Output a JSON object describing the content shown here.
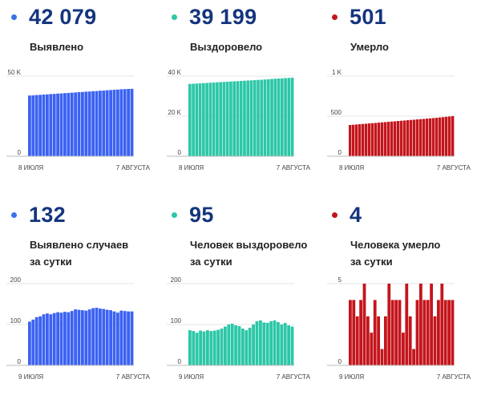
{
  "cards": [
    {
      "value": "42 079",
      "label_lines": [
        "Выявлено"
      ],
      "color": "#3b62f2",
      "dot_color": "#3b71e8",
      "chart_data": {
        "type": "bar",
        "y_ticks": [
          "50 K",
          "0"
        ],
        "ylim": [
          0,
          50000
        ],
        "x_tick_labels": [
          "8 ИЮЛЯ",
          "7 АВГУСТА"
        ],
        "values": [
          37900,
          38000,
          38200,
          38300,
          38500,
          38600,
          38800,
          38900,
          39100,
          39200,
          39400,
          39500,
          39700,
          39800,
          40000,
          40100,
          40300,
          40400,
          40600,
          40700,
          40900,
          41000,
          41200,
          41300,
          41500,
          41600,
          41800,
          41900,
          42000,
          42079
        ]
      }
    },
    {
      "value": "39 199",
      "label_lines": [
        "Выздоровело"
      ],
      "color": "#2cc7a7",
      "dot_color": "#2cc7a7",
      "chart_data": {
        "type": "bar",
        "y_ticks": [
          "40 K",
          "20 K",
          "0"
        ],
        "ylim": [
          0,
          40000
        ],
        "x_tick_labels": [
          "8 ИЮЛЯ",
          "7 АВГУСТА"
        ],
        "values": [
          36100,
          36200,
          36300,
          36400,
          36500,
          36600,
          36700,
          36800,
          36900,
          37000,
          37100,
          37200,
          37300,
          37400,
          37500,
          37600,
          37700,
          37800,
          37900,
          38000,
          38100,
          38200,
          38300,
          38400,
          38600,
          38700,
          38800,
          38900,
          39000,
          39100,
          39199
        ]
      }
    },
    {
      "value": "501",
      "label_lines": [
        "Умерло"
      ],
      "color": "#c4151c",
      "dot_color": "#c4151c",
      "chart_data": {
        "type": "bar",
        "y_ticks": [
          "1 K",
          "500",
          "0"
        ],
        "ylim": [
          0,
          1000
        ],
        "x_tick_labels": [
          "8 ИЮЛЯ",
          "7 АВГУСТА"
        ],
        "values": [
          390,
          393,
          396,
          400,
          403,
          406,
          410,
          413,
          416,
          420,
          423,
          426,
          430,
          433,
          436,
          440,
          443,
          446,
          450,
          453,
          456,
          460,
          463,
          466,
          470,
          473,
          476,
          480,
          484,
          488,
          492,
          496,
          501
        ]
      }
    },
    {
      "value": "132",
      "label_lines": [
        "Выявлено случаев",
        "за сутки"
      ],
      "color": "#3b62f2",
      "dot_color": "#3b71e8",
      "chart_data": {
        "type": "bar",
        "y_ticks": [
          "200",
          "100",
          "0"
        ],
        "ylim": [
          0,
          200
        ],
        "x_tick_labels": [
          "9 ИЮЛЯ",
          "7 АВГУСТА"
        ],
        "values": [
          107,
          112,
          118,
          120,
          125,
          127,
          125,
          128,
          130,
          129,
          131,
          130,
          133,
          137,
          136,
          135,
          134,
          137,
          140,
          141,
          139,
          138,
          136,
          135,
          132,
          129,
          134,
          133,
          132,
          132
        ]
      }
    },
    {
      "value": "95",
      "label_lines": [
        "Человек выздоровело",
        "за сутки"
      ],
      "color": "#2cc7a7",
      "dot_color": "#2cc7a7",
      "chart_data": {
        "type": "bar",
        "y_ticks": [
          "200",
          "100",
          "0"
        ],
        "ylim": [
          0,
          200
        ],
        "x_tick_labels": [
          "9 ИЮЛЯ",
          "7 АВГУСТА"
        ],
        "values": [
          86,
          84,
          80,
          85,
          83,
          86,
          84,
          85,
          87,
          90,
          95,
          100,
          102,
          98,
          96,
          90,
          86,
          92,
          100,
          108,
          110,
          105,
          104,
          108,
          110,
          106,
          100,
          104,
          98,
          95
        ]
      }
    },
    {
      "value": "4",
      "label_lines": [
        "Человека умерло",
        "за сутки"
      ],
      "color": "#c4151c",
      "dot_color": "#c4151c",
      "chart_data": {
        "type": "bar",
        "y_ticks": [
          "5",
          "0"
        ],
        "ylim": [
          0,
          5
        ],
        "x_tick_labels": [
          "9 ИЮЛЯ",
          "7 АВГУСТА"
        ],
        "values": [
          4,
          4,
          3,
          4,
          5,
          3,
          2,
          4,
          3,
          1,
          3,
          5,
          4,
          4,
          4,
          2,
          5,
          3,
          1,
          4,
          5,
          4,
          4,
          5,
          3,
          4,
          5,
          4,
          4,
          4
        ]
      }
    }
  ]
}
